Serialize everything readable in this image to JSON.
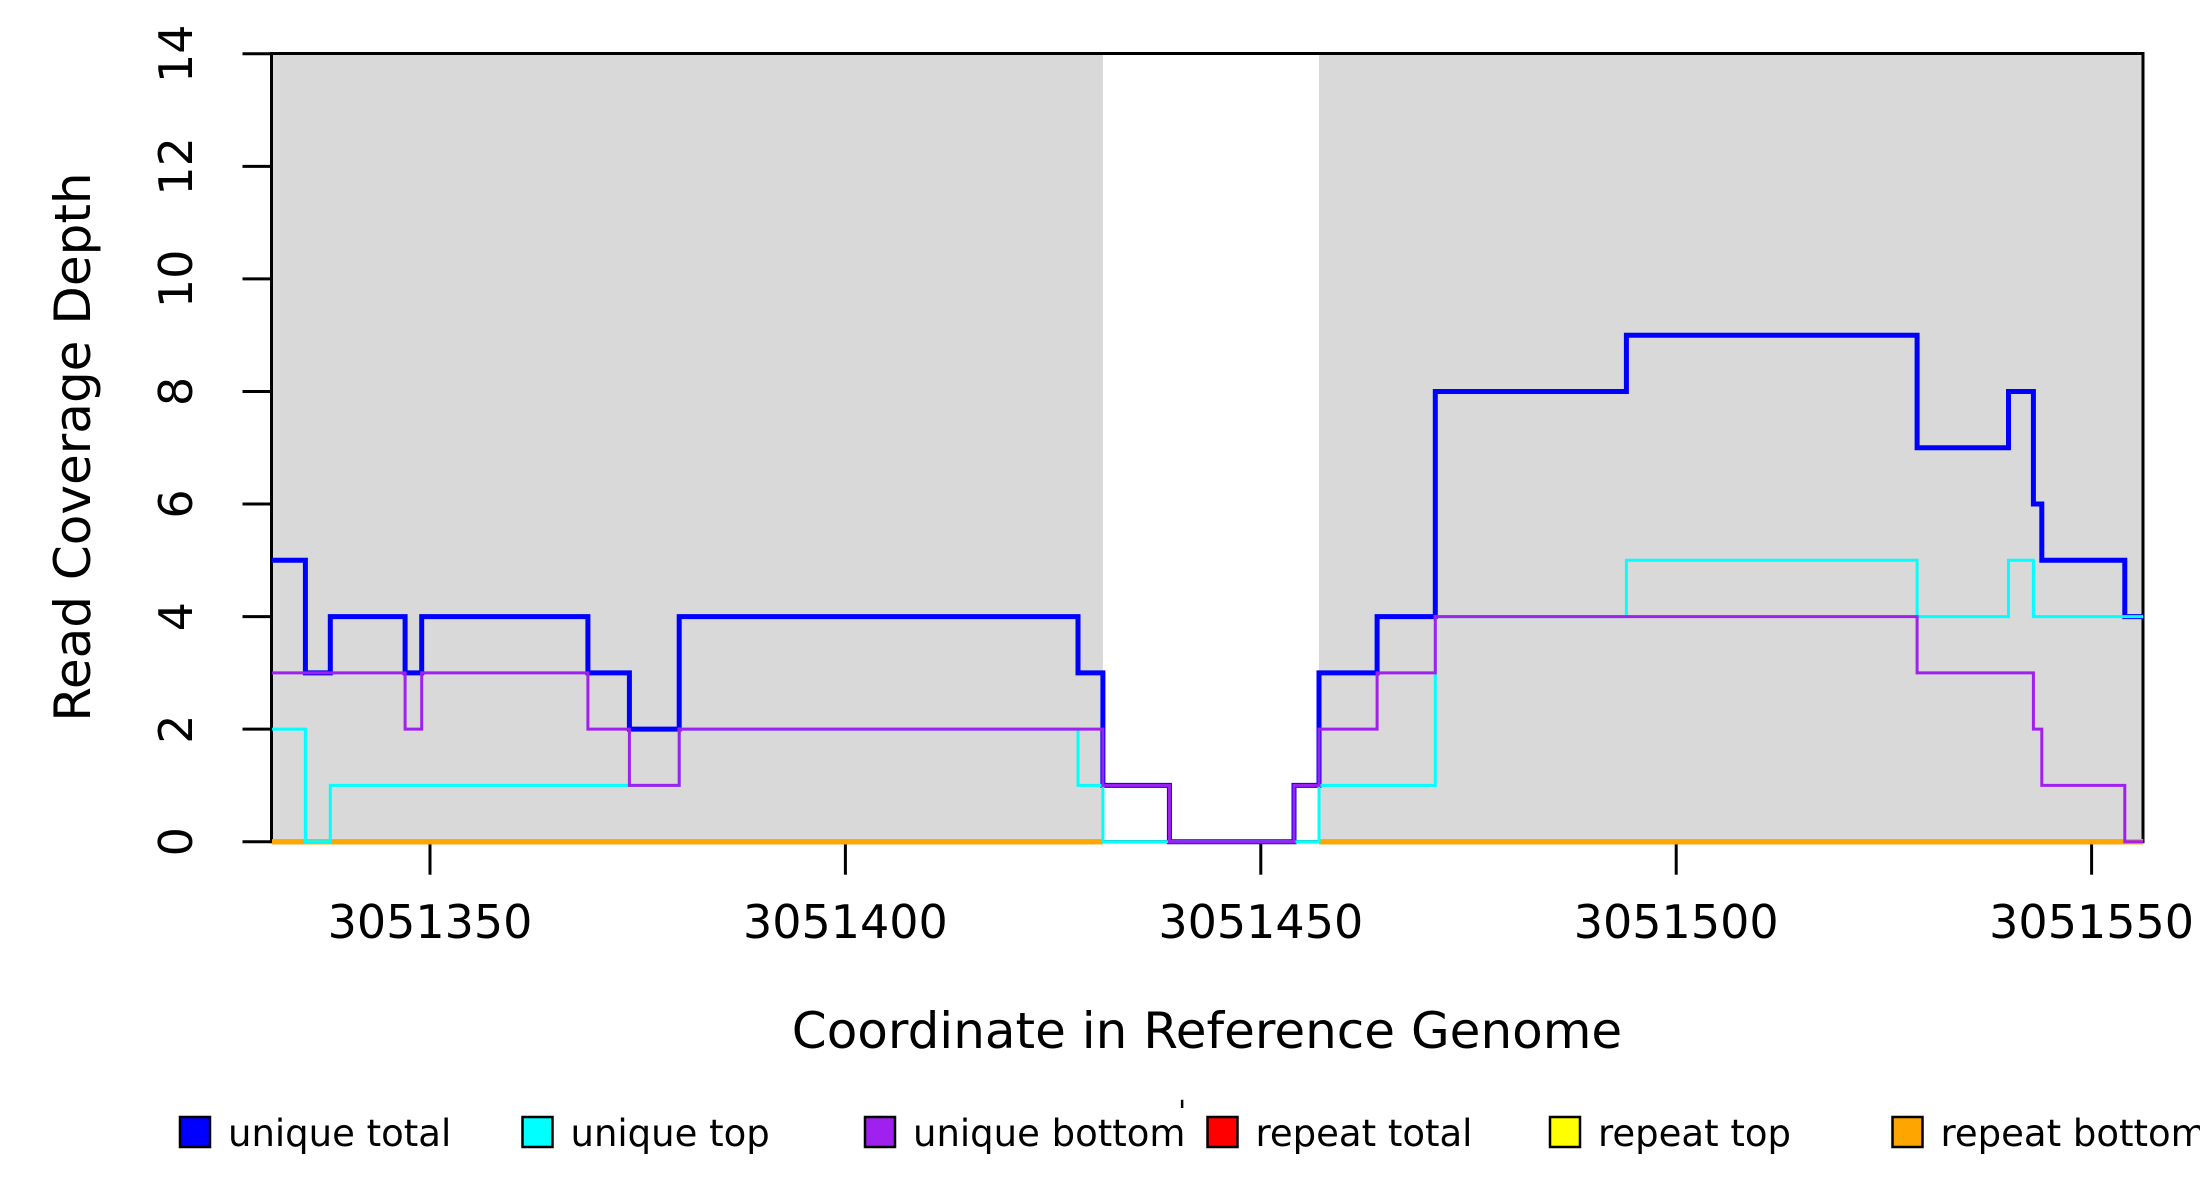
{
  "chart_data": {
    "type": "line",
    "subtype": "step-coverage-plot",
    "title": "",
    "xlabel": "Coordinate in Reference Genome",
    "ylabel": "Read Coverage Depth",
    "xlim": [
      3051331,
      3051556.2
    ],
    "ylim": [
      0,
      14
    ],
    "x_ticks": [
      3051350,
      3051400,
      3051450,
      3051500,
      3051550
    ],
    "y_ticks": [
      0,
      2,
      4,
      6,
      8,
      10,
      12,
      14
    ],
    "grid": false,
    "legend_position": "bottom",
    "background_color": "#ffffff",
    "shade_color": "#D9D9D9",
    "shaded_regions": [
      {
        "x0": 3051331,
        "x1": 3051431
      },
      {
        "x0": 3051457,
        "x1": 3051556.2
      }
    ],
    "series": [
      {
        "name": "unique total",
        "color": "#0000FF",
        "width": 5,
        "segments": [
          [
            [
              3051331,
              5
            ],
            [
              3051335,
              5
            ],
            [
              3051335,
              3
            ],
            [
              3051338,
              3
            ],
            [
              3051338,
              4
            ],
            [
              3051347,
              4
            ],
            [
              3051347,
              3
            ],
            [
              3051349,
              3
            ],
            [
              3051349,
              4
            ],
            [
              3051369,
              4
            ],
            [
              3051369,
              3
            ],
            [
              3051374,
              3
            ],
            [
              3051374,
              2
            ],
            [
              3051380,
              2
            ],
            [
              3051380,
              4
            ],
            [
              3051428,
              4
            ],
            [
              3051428,
              3
            ],
            [
              3051431,
              3
            ],
            [
              3051431,
              1
            ],
            [
              3051439,
              1
            ],
            [
              3051439,
              0
            ],
            [
              3051454,
              0
            ],
            [
              3051454,
              1
            ],
            [
              3051457,
              1
            ],
            [
              3051457,
              3
            ],
            [
              3051464,
              3
            ],
            [
              3051464,
              4
            ],
            [
              3051471,
              4
            ],
            [
              3051471,
              8
            ],
            [
              3051494,
              8
            ],
            [
              3051494,
              9
            ],
            [
              3051529,
              9
            ],
            [
              3051529,
              7
            ],
            [
              3051540,
              7
            ],
            [
              3051540,
              8
            ],
            [
              3051543,
              8
            ],
            [
              3051543,
              6
            ],
            [
              3051544,
              6
            ],
            [
              3051544,
              5
            ],
            [
              3051554,
              5
            ],
            [
              3051554,
              4
            ],
            [
              3051556.2,
              4
            ]
          ]
        ]
      },
      {
        "name": "repeat total",
        "color": "#FF0000",
        "width": 5,
        "segments": [
          [
            [
              3051331,
              0
            ],
            [
              3051431,
              0
            ]
          ],
          [
            [
              3051457,
              0
            ],
            [
              3051556.2,
              0
            ]
          ]
        ]
      },
      {
        "name": "repeat top",
        "color": "#FFFF00",
        "width": 5,
        "segments": [
          [
            [
              3051331,
              0
            ],
            [
              3051431,
              0
            ]
          ],
          [
            [
              3051457,
              0
            ],
            [
              3051556.2,
              0
            ]
          ]
        ]
      },
      {
        "name": "repeat bottom",
        "color": "#FFA500",
        "width": 5,
        "segments": [
          [
            [
              3051331,
              0
            ],
            [
              3051431,
              0
            ]
          ],
          [
            [
              3051457,
              0
            ],
            [
              3051556.2,
              0
            ]
          ]
        ]
      },
      {
        "name": "unique top",
        "color": "#00FFFF",
        "width": 3,
        "segments": [
          [
            [
              3051331,
              2
            ],
            [
              3051335,
              2
            ],
            [
              3051335,
              0
            ],
            [
              3051338,
              0
            ],
            [
              3051338,
              1
            ],
            [
              3051380,
              1
            ],
            [
              3051380,
              2
            ],
            [
              3051428,
              2
            ],
            [
              3051428,
              1
            ],
            [
              3051431,
              1
            ],
            [
              3051431,
              0
            ],
            [
              3051457,
              0
            ],
            [
              3051457,
              1
            ],
            [
              3051471,
              1
            ],
            [
              3051471,
              4
            ],
            [
              3051494,
              4
            ],
            [
              3051494,
              5
            ],
            [
              3051529,
              5
            ],
            [
              3051529,
              4
            ],
            [
              3051540,
              4
            ],
            [
              3051540,
              5
            ],
            [
              3051543,
              5
            ],
            [
              3051543,
              4
            ],
            [
              3051556.2,
              4
            ]
          ]
        ]
      },
      {
        "name": "unique bottom",
        "color": "#A020F0",
        "width": 3,
        "segments": [
          [
            [
              3051331,
              3
            ],
            [
              3051347,
              3
            ],
            [
              3051347,
              2
            ],
            [
              3051349,
              2
            ],
            [
              3051349,
              3
            ],
            [
              3051369,
              3
            ],
            [
              3051369,
              2
            ],
            [
              3051374,
              2
            ],
            [
              3051374,
              1
            ],
            [
              3051380,
              1
            ],
            [
              3051380,
              2
            ],
            [
              3051431,
              2
            ],
            [
              3051431,
              1
            ],
            [
              3051439,
              1
            ],
            [
              3051439,
              0
            ],
            [
              3051454,
              0
            ],
            [
              3051454,
              1
            ],
            [
              3051457,
              1
            ],
            [
              3051457,
              2
            ],
            [
              3051464,
              2
            ],
            [
              3051464,
              3
            ],
            [
              3051471,
              3
            ],
            [
              3051471,
              4
            ],
            [
              3051529,
              4
            ],
            [
              3051529,
              3
            ],
            [
              3051543,
              3
            ],
            [
              3051543,
              2
            ],
            [
              3051544,
              2
            ],
            [
              3051544,
              1
            ],
            [
              3051554,
              1
            ],
            [
              3051554,
              0
            ],
            [
              3051556.2,
              0
            ]
          ]
        ]
      }
    ],
    "legend": [
      {
        "label": "unique total",
        "color": "#0000FF"
      },
      {
        "label": "unique top",
        "color": "#00FFFF"
      },
      {
        "label": "unique bottom",
        "color": "#A020F0"
      },
      {
        "label": "repeat total",
        "color": "#FF0000"
      },
      {
        "label": "repeat top",
        "color": "#FFFF00"
      },
      {
        "label": "repeat bottom",
        "color": "#FFA500"
      }
    ],
    "stray_mark": "'"
  }
}
